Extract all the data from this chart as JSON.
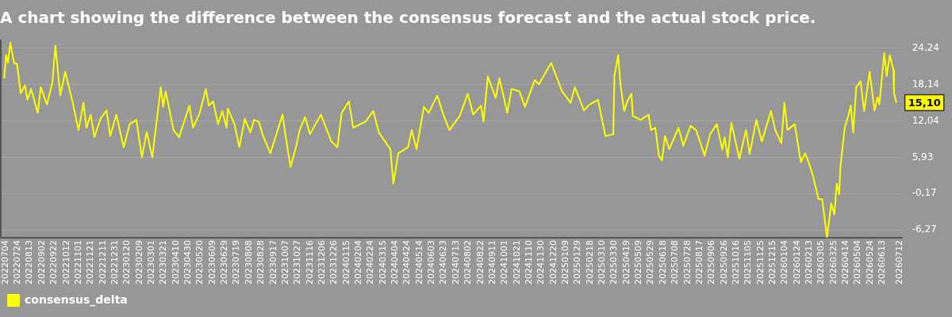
{
  "chart_data": {
    "type": "line",
    "title": "A chart showing the difference between the consensus forecast and the actual stock price.",
    "x": [
      "2022-07-02",
      "2022-07-05",
      "2022-07-08",
      "2022-07-12",
      "2022-07-18",
      "2022-07-23",
      "2022-07-29",
      "2022-08-05",
      "2022-08-09",
      "2022-08-15",
      "2022-08-26",
      "2022-08-31",
      "2022-09-10",
      "2022-09-19",
      "2022-09-24",
      "2022-10-02",
      "2022-10-10",
      "2022-10-22",
      "2022-11-01",
      "2022-11-09",
      "2022-11-14",
      "2022-11-21",
      "2022-11-27",
      "2022-12-07",
      "2022-12-17",
      "2022-12-23",
      "2023-01-02",
      "2023-01-14",
      "2023-01-24",
      "2023-02-04",
      "2023-02-13",
      "2023-02-21",
      "2023-03-02",
      "2023-03-16",
      "2023-03-20",
      "2023-03-24",
      "2023-04-06",
      "2023-04-15",
      "2023-05-02",
      "2023-05-08",
      "2023-05-19",
      "2023-05-29",
      "2023-06-03",
      "2023-06-10",
      "2023-06-18",
      "2023-06-25",
      "2023-07-02",
      "2023-07-04",
      "2023-07-15",
      "2023-07-23",
      "2023-08-01",
      "2023-08-10",
      "2023-08-16",
      "2023-08-24",
      "2023-08-31",
      "2023-09-12",
      "2023-09-24",
      "2023-10-02",
      "2023-10-07",
      "2023-10-15",
      "2023-10-24",
      "2023-10-30",
      "2023-11-08",
      "2023-11-16",
      "2023-12-04",
      "2023-12-21",
      "2023-12-31",
      "2024-01-07",
      "2024-01-19",
      "2024-01-26",
      "2024-02-15",
      "2024-02-28",
      "2024-03-08",
      "2024-03-27",
      "2024-04-01",
      "2024-04-09",
      "2024-04-25",
      "2024-05-01",
      "2024-05-09",
      "2024-05-21",
      "2024-05-29",
      "2024-06-12",
      "2024-06-22",
      "2024-07-02",
      "2024-07-19",
      "2024-08-01",
      "2024-08-10",
      "2024-08-23",
      "2024-08-27",
      "2024-09-03",
      "2024-09-16",
      "2024-09-22",
      "2024-10-05",
      "2024-10-12",
      "2024-10-25",
      "2024-11-03",
      "2024-11-19",
      "2024-11-26",
      "2024-12-16",
      "2025-01-03",
      "2025-01-17",
      "2025-01-24",
      "2025-02-08",
      "2025-02-17",
      "2025-03-03",
      "2025-03-15",
      "2025-03-28",
      "2025-03-30",
      "2025-04-05",
      "2025-04-09",
      "2025-04-15",
      "2025-04-20",
      "2025-04-27",
      "2025-04-29",
      "2025-05-12",
      "2025-05-25",
      "2025-05-29",
      "2025-06-05",
      "2025-06-11",
      "2025-06-16",
      "2025-06-21",
      "2025-06-28",
      "2025-07-13",
      "2025-07-21",
      "2025-08-02",
      "2025-08-11",
      "2025-08-25",
      "2025-09-03",
      "2025-09-14",
      "2025-09-23",
      "2025-09-27",
      "2025-10-02",
      "2025-10-08",
      "2025-10-21",
      "2025-11-01",
      "2025-11-07",
      "2025-11-18",
      "2025-11-27",
      "2025-12-12",
      "2025-12-19",
      "2025-12-29",
      "2026-01-03",
      "2026-01-08",
      "2026-01-20",
      "2026-01-30",
      "2026-02-06",
      "2026-02-12",
      "2026-02-19",
      "2026-02-28",
      "2026-03-06",
      "2026-03-14",
      "2026-03-21",
      "2026-03-26",
      "2026-03-30",
      "2026-04-03",
      "2026-04-05",
      "2026-04-12",
      "2026-04-18",
      "2026-04-22",
      "2026-04-26",
      "2026-05-01",
      "2026-05-08",
      "2026-05-14",
      "2026-05-23",
      "2026-05-31",
      "2026-06-05",
      "2026-06-08",
      "2026-06-16",
      "2026-06-20",
      "2026-06-25",
      "2026-07-01",
      "2026-07-02",
      "2026-07-06"
    ],
    "series": [
      {
        "name": "consensus_delta",
        "color": "#ffff00",
        "values": [
          19.2,
          23.1,
          21.8,
          25.2,
          21.8,
          21.6,
          16.7,
          18.0,
          15.6,
          17.4,
          13.4,
          17.7,
          14.8,
          18.5,
          24.7,
          16.3,
          20.3,
          15.3,
          10.5,
          15.1,
          10.9,
          13.1,
          9.3,
          12.4,
          13.8,
          9.5,
          13.1,
          7.6,
          11.5,
          12.2,
          5.9,
          10.2,
          5.9,
          17.7,
          14.4,
          17.0,
          10.5,
          9.3,
          14.6,
          10.9,
          13.4,
          17.4,
          14.6,
          15.3,
          11.5,
          13.7,
          10.9,
          14.1,
          11.5,
          7.6,
          12.4,
          10.1,
          12.2,
          11.9,
          9.5,
          6.6,
          10.5,
          13.1,
          9.5,
          4.3,
          7.6,
          10.5,
          12.7,
          9.8,
          13.1,
          8.6,
          7.6,
          13.4,
          15.3,
          10.9,
          11.9,
          13.7,
          10.1,
          7.3,
          1.5,
          6.6,
          7.6,
          10.5,
          7.3,
          14.4,
          13.4,
          16.3,
          13.1,
          10.5,
          12.9,
          16.6,
          13.1,
          14.6,
          11.9,
          19.5,
          15.9,
          19.2,
          13.4,
          17.4,
          17.0,
          14.4,
          18.9,
          18.2,
          21.8,
          17.0,
          15.1,
          17.7,
          13.8,
          14.8,
          15.6,
          9.5,
          9.8,
          19.6,
          23.1,
          18.0,
          13.7,
          15.3,
          16.6,
          12.9,
          12.2,
          13.1,
          10.5,
          10.9,
          6.2,
          5.4,
          9.5,
          7.3,
          10.9,
          7.9,
          11.2,
          10.5,
          6.2,
          9.8,
          11.5,
          7.2,
          9.3,
          5.9,
          11.7,
          5.7,
          10.5,
          6.5,
          12.2,
          8.6,
          13.7,
          10.5,
          8.3,
          15.1,
          10.5,
          11.5,
          5.1,
          6.6,
          5.0,
          2.8,
          -1.1,
          -1.1,
          -7.5,
          -1.8,
          -3.7,
          1.5,
          -0.3,
          4.3,
          10.9,
          12.9,
          14.6,
          10.1,
          17.7,
          18.7,
          13.7,
          20.3,
          13.8,
          16.0,
          14.8,
          23.5,
          19.6,
          23.1,
          20.6,
          16.7,
          15.1
        ]
      }
    ],
    "xlim": [
      "2022-06-25",
      "2026-07-16"
    ],
    "xticks": [
      {
        "value": "2022-07-04",
        "label": "20220704"
      },
      {
        "value": "2022-07-24",
        "label": "20220724"
      },
      {
        "value": "2022-08-13",
        "label": "20220813"
      },
      {
        "value": "2022-09-02",
        "label": "20220902"
      },
      {
        "value": "2022-09-22",
        "label": "20220922"
      },
      {
        "value": "2022-10-12",
        "label": "20221012"
      },
      {
        "value": "2022-11-01",
        "label": "20221101"
      },
      {
        "value": "2022-11-21",
        "label": "20221121"
      },
      {
        "value": "2022-12-11",
        "label": "20221211"
      },
      {
        "value": "2022-12-31",
        "label": "20221231"
      },
      {
        "value": "2023-01-20",
        "label": "20230120"
      },
      {
        "value": "2023-02-09",
        "label": "20230209"
      },
      {
        "value": "2023-03-01",
        "label": "20230301"
      },
      {
        "value": "2023-03-21",
        "label": "20230321"
      },
      {
        "value": "2023-04-10",
        "label": "20230410"
      },
      {
        "value": "2023-04-30",
        "label": "20230430"
      },
      {
        "value": "2023-05-20",
        "label": "20230520"
      },
      {
        "value": "2023-06-09",
        "label": "20230609"
      },
      {
        "value": "2023-06-29",
        "label": "20230629"
      },
      {
        "value": "2023-07-19",
        "label": "20230719"
      },
      {
        "value": "2023-08-08",
        "label": "20230808"
      },
      {
        "value": "2023-08-28",
        "label": "20230828"
      },
      {
        "value": "2023-09-17",
        "label": "20230917"
      },
      {
        "value": "2023-10-07",
        "label": "20231007"
      },
      {
        "value": "2023-10-27",
        "label": "20231027"
      },
      {
        "value": "2023-11-16",
        "label": "20231116"
      },
      {
        "value": "2023-12-06",
        "label": "20231206"
      },
      {
        "value": "2023-12-26",
        "label": "20231226"
      },
      {
        "value": "2024-01-15",
        "label": "20240115"
      },
      {
        "value": "2024-02-04",
        "label": "20240204"
      },
      {
        "value": "2024-02-24",
        "label": "20240224"
      },
      {
        "value": "2024-03-15",
        "label": "20240315"
      },
      {
        "value": "2024-04-04",
        "label": "20240404"
      },
      {
        "value": "2024-04-24",
        "label": "20240424"
      },
      {
        "value": "2024-05-14",
        "label": "20240514"
      },
      {
        "value": "2024-06-03",
        "label": "20240603"
      },
      {
        "value": "2024-06-23",
        "label": "20240623"
      },
      {
        "value": "2024-07-13",
        "label": "20240713"
      },
      {
        "value": "2024-08-02",
        "label": "20240802"
      },
      {
        "value": "2024-08-22",
        "label": "20240822"
      },
      {
        "value": "2024-09-11",
        "label": "20240911"
      },
      {
        "value": "2024-10-01",
        "label": "20241001"
      },
      {
        "value": "2024-10-21",
        "label": "20241021"
      },
      {
        "value": "2024-11-10",
        "label": "20241110"
      },
      {
        "value": "2024-11-30",
        "label": "20241130"
      },
      {
        "value": "2024-12-20",
        "label": "20241220"
      },
      {
        "value": "2025-01-09",
        "label": "20250109"
      },
      {
        "value": "2025-01-29",
        "label": "20250129"
      },
      {
        "value": "2025-02-18",
        "label": "20250218"
      },
      {
        "value": "2025-03-10",
        "label": "20250310"
      },
      {
        "value": "2025-03-30",
        "label": "20250330"
      },
      {
        "value": "2025-04-19",
        "label": "20250419"
      },
      {
        "value": "2025-05-09",
        "label": "20250509"
      },
      {
        "value": "2025-05-29",
        "label": "20250529"
      },
      {
        "value": "2025-06-18",
        "label": "20250618"
      },
      {
        "value": "2025-07-08",
        "label": "20250708"
      },
      {
        "value": "2025-07-28",
        "label": "20250728"
      },
      {
        "value": "2025-08-17",
        "label": "20250817"
      },
      {
        "value": "2025-09-06",
        "label": "20250906"
      },
      {
        "value": "2025-09-26",
        "label": "20250926"
      },
      {
        "value": "2025-10-16",
        "label": "20251016"
      },
      {
        "value": "2025-11-05",
        "label": "20251105"
      },
      {
        "value": "2025-11-25",
        "label": "20251125"
      },
      {
        "value": "2025-12-15",
        "label": "20251215"
      },
      {
        "value": "2026-01-04",
        "label": "20260104"
      },
      {
        "value": "2026-01-24",
        "label": "20260124"
      },
      {
        "value": "2026-02-13",
        "label": "20260213"
      },
      {
        "value": "2026-03-05",
        "label": "20260305"
      },
      {
        "value": "2026-03-25",
        "label": "20260325"
      },
      {
        "value": "2026-04-14",
        "label": "20260414"
      },
      {
        "value": "2026-05-04",
        "label": "20260504"
      },
      {
        "value": "2026-05-24",
        "label": "20260524"
      },
      {
        "value": "2026-06-13",
        "label": "20260613"
      },
      {
        "value": "2026-07-12",
        "label": "20260712"
      }
    ],
    "ylim": [
      -7.6,
      25.7
    ],
    "yticks": [
      {
        "value": -6.27,
        "label": "-6,27"
      },
      {
        "value": -0.17,
        "label": "-0,17"
      },
      {
        "value": 5.93,
        "label": "5,93"
      },
      {
        "value": 12.04,
        "label": "12,04"
      },
      {
        "value": 18.14,
        "label": "18,14"
      },
      {
        "value": 24.24,
        "label": "24,24"
      }
    ],
    "annotations": [
      {
        "text": "15,10",
        "x": "2026-07-06",
        "y": 15.1
      }
    ],
    "grid": "y",
    "legend": "bottom left",
    "marker": "none",
    "line_style": "solid"
  }
}
